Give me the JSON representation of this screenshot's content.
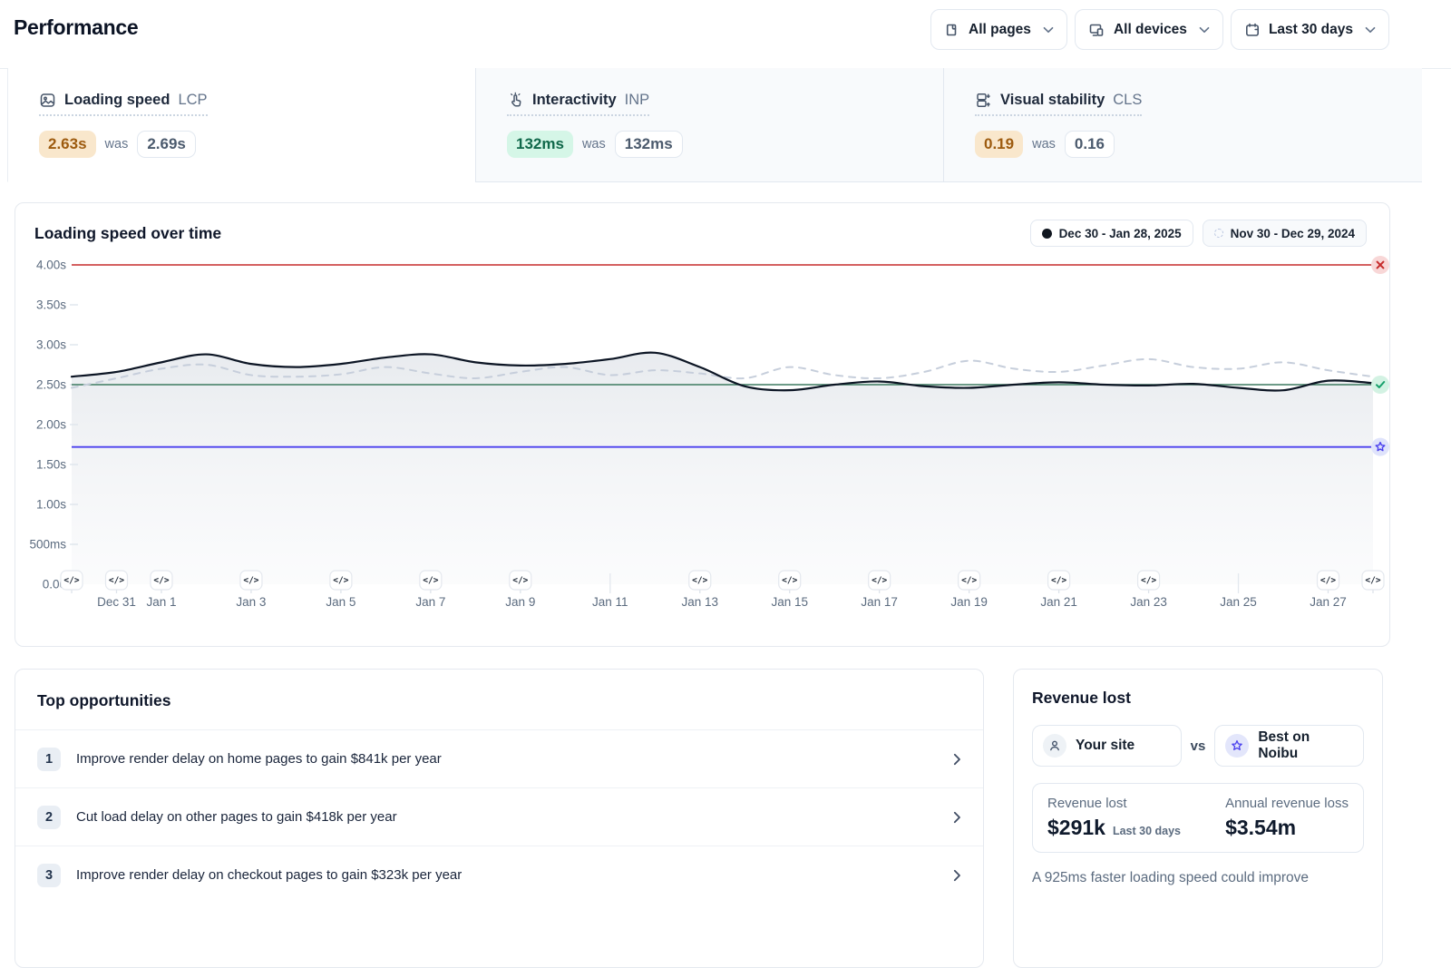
{
  "header": {
    "title": "Performance",
    "filters": [
      {
        "icon": "pages-icon",
        "label": "All pages"
      },
      {
        "icon": "devices-icon",
        "label": "All devices"
      },
      {
        "icon": "calendar-icon",
        "label": "Last 30 days"
      }
    ]
  },
  "metrics": [
    {
      "name": "Loading speed",
      "code": "LCP",
      "current": "2.63s",
      "was_label": "was",
      "previous": "2.69s",
      "status": "warn",
      "icon": "image-icon"
    },
    {
      "name": "Interactivity",
      "code": "INP",
      "current": "132ms",
      "was_label": "was",
      "previous": "132ms",
      "status": "good",
      "icon": "tap-icon"
    },
    {
      "name": "Visual stability",
      "code": "CLS",
      "current": "0.19",
      "was_label": "was",
      "previous": "0.16",
      "status": "warn",
      "icon": "layout-shift-icon"
    }
  ],
  "chart": {
    "title": "Loading speed over time",
    "legend": [
      {
        "label": "Dec 30 - Jan 28, 2025",
        "style": "solid"
      },
      {
        "label": "Nov 30 - Dec 29, 2024",
        "style": "dashed"
      }
    ]
  },
  "chart_data": {
    "type": "area",
    "title": "Loading speed over time",
    "ylim": [
      0,
      4
    ],
    "days": 30,
    "y_ticks": [
      {
        "v": 4.0,
        "label": "4.00s"
      },
      {
        "v": 3.5,
        "label": "3.50s"
      },
      {
        "v": 3.0,
        "label": "3.00s"
      },
      {
        "v": 2.5,
        "label": "2.50s"
      },
      {
        "v": 2.0,
        "label": "2.00s"
      },
      {
        "v": 1.5,
        "label": "1.50s"
      },
      {
        "v": 1.0,
        "label": "1.00s"
      },
      {
        "v": 0.5,
        "label": "500ms"
      },
      {
        "v": 0.0,
        "label": "0.00"
      }
    ],
    "x_ticks": [
      {
        "day": 1,
        "label": "Dec 31"
      },
      {
        "day": 2,
        "label": "Jan 1"
      },
      {
        "day": 4,
        "label": "Jan 3"
      },
      {
        "day": 6,
        "label": "Jan 5"
      },
      {
        "day": 8,
        "label": "Jan 7"
      },
      {
        "day": 10,
        "label": "Jan 9"
      },
      {
        "day": 12,
        "label": "Jan 11"
      },
      {
        "day": 14,
        "label": "Jan 13"
      },
      {
        "day": 16,
        "label": "Jan 15"
      },
      {
        "day": 18,
        "label": "Jan 17"
      },
      {
        "day": 20,
        "label": "Jan 19"
      },
      {
        "day": 22,
        "label": "Jan 21"
      },
      {
        "day": 24,
        "label": "Jan 23"
      },
      {
        "day": 26,
        "label": "Jan 25"
      },
      {
        "day": 28,
        "label": "Jan 27"
      }
    ],
    "deploy_marker_days": [
      0,
      1,
      2,
      4,
      6,
      8,
      10,
      14,
      16,
      18,
      20,
      22,
      24,
      28,
      29
    ],
    "series": [
      {
        "name": "Dec 30 - Jan 28, 2025",
        "style": "solid",
        "values": [
          2.6,
          2.66,
          2.78,
          2.88,
          2.76,
          2.72,
          2.76,
          2.84,
          2.88,
          2.78,
          2.74,
          2.76,
          2.82,
          2.9,
          2.72,
          2.48,
          2.43,
          2.5,
          2.54,
          2.48,
          2.46,
          2.5,
          2.53,
          2.5,
          2.49,
          2.51,
          2.46,
          2.43,
          2.55,
          2.52
        ]
      },
      {
        "name": "Nov 30 - Dec 29, 2024",
        "style": "dashed",
        "values": [
          2.46,
          2.58,
          2.7,
          2.75,
          2.62,
          2.6,
          2.63,
          2.72,
          2.64,
          2.58,
          2.66,
          2.72,
          2.62,
          2.68,
          2.64,
          2.58,
          2.72,
          2.62,
          2.58,
          2.66,
          2.8,
          2.7,
          2.66,
          2.74,
          2.82,
          2.72,
          2.7,
          2.78,
          2.68,
          2.6
        ]
      }
    ],
    "reference_lines": [
      {
        "value": 4.0,
        "color": "#c62b2b",
        "badge_bg": "#f8d7d7",
        "icon": "x",
        "name": "poor-threshold"
      },
      {
        "value": 2.5,
        "color": "#3d7a60",
        "badge_bg": "#d3f2e3",
        "icon": "check",
        "name": "good-threshold"
      },
      {
        "value": 1.72,
        "color": "#4b41ee",
        "badge_bg": "#dfe3fb",
        "icon": "star",
        "name": "best-on-noibu"
      }
    ]
  },
  "opportunities": {
    "title": "Top opportunities",
    "items": [
      {
        "rank": "1",
        "text": "Improve render delay on home pages to gain $841k per year"
      },
      {
        "rank": "2",
        "text": "Cut load delay on other pages to gain $418k per year"
      },
      {
        "rank": "3",
        "text": "Improve render delay on checkout pages to gain $323k per year"
      }
    ]
  },
  "revenue": {
    "title": "Revenue lost",
    "your_site_label": "Your site",
    "vs_label": "vs",
    "best_label": "Best on Noibu",
    "lost_label": "Revenue lost",
    "lost_value": "$291k",
    "lost_period": "Last 30 days",
    "annual_label": "Annual revenue loss",
    "annual_value": "$3.54m",
    "note": "A 925ms faster loading speed could improve"
  },
  "colors": {
    "accent_indigo": "#4b41ee",
    "threshold_red": "#c62b2b",
    "threshold_green": "#3d7a60",
    "badge_warn_bg": "#f9e7cc",
    "badge_warn_text": "#9d5b0f",
    "badge_good_bg": "#d5f6e7",
    "badge_good_text": "#10684a",
    "series_current": "#0c1524",
    "series_previous": "#c6cedb",
    "area_fill_top": "#e7eaee",
    "area_fill_bottom": "#f7f8fa"
  }
}
